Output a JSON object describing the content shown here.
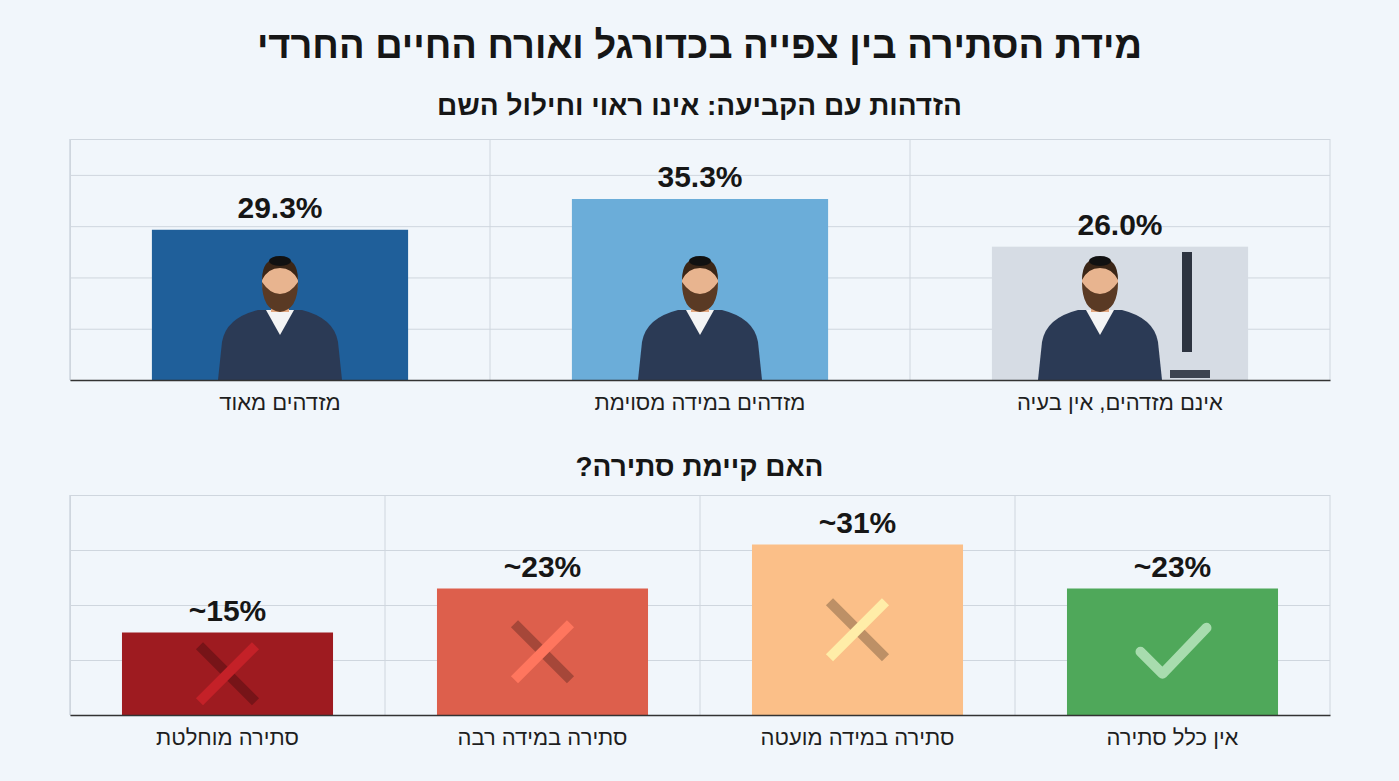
{
  "title": "מידת הסתירה בין צפייה בכדורגל ואורח החיים החרדי",
  "chart_data": [
    {
      "type": "bar",
      "title": "הזדהות עם הקביעה: אינו ראוי וחילול השם",
      "categories": [
        "אינם מזדהים, אין בעיה",
        "מזדהים במידה מסוימת",
        "מזדהים מאוד"
      ],
      "values": [
        26.0,
        35.3,
        29.3
      ],
      "value_labels": [
        "26.0%",
        "35.3%",
        "29.3%"
      ],
      "colors": [
        "#d6dce4",
        "#6badd9",
        "#1f5f9a"
      ],
      "ylim": [
        0,
        47
      ],
      "yticks": [
        0,
        10,
        20,
        30,
        40
      ],
      "grid": true,
      "data_labels": true,
      "tick_labels": "x"
    },
    {
      "type": "bar",
      "title": "האם קיימת סתירה?",
      "categories": [
        "אין כלל סתירה",
        "סתירה במידה מועטה",
        "סתירה במידה רבה",
        "סתירה מוחלטת"
      ],
      "values": [
        23,
        31,
        23,
        15
      ],
      "value_labels": [
        "~23%",
        "~31%",
        "~23%",
        "~15%"
      ],
      "colors": [
        "#4fa85a",
        "#fbbf88",
        "#dd5f4c",
        "#9e1b20"
      ],
      "ylim": [
        0,
        40
      ],
      "yticks": [
        0,
        10,
        20,
        30,
        40
      ],
      "grid": true,
      "data_labels": true,
      "tick_labels": "x"
    }
  ]
}
